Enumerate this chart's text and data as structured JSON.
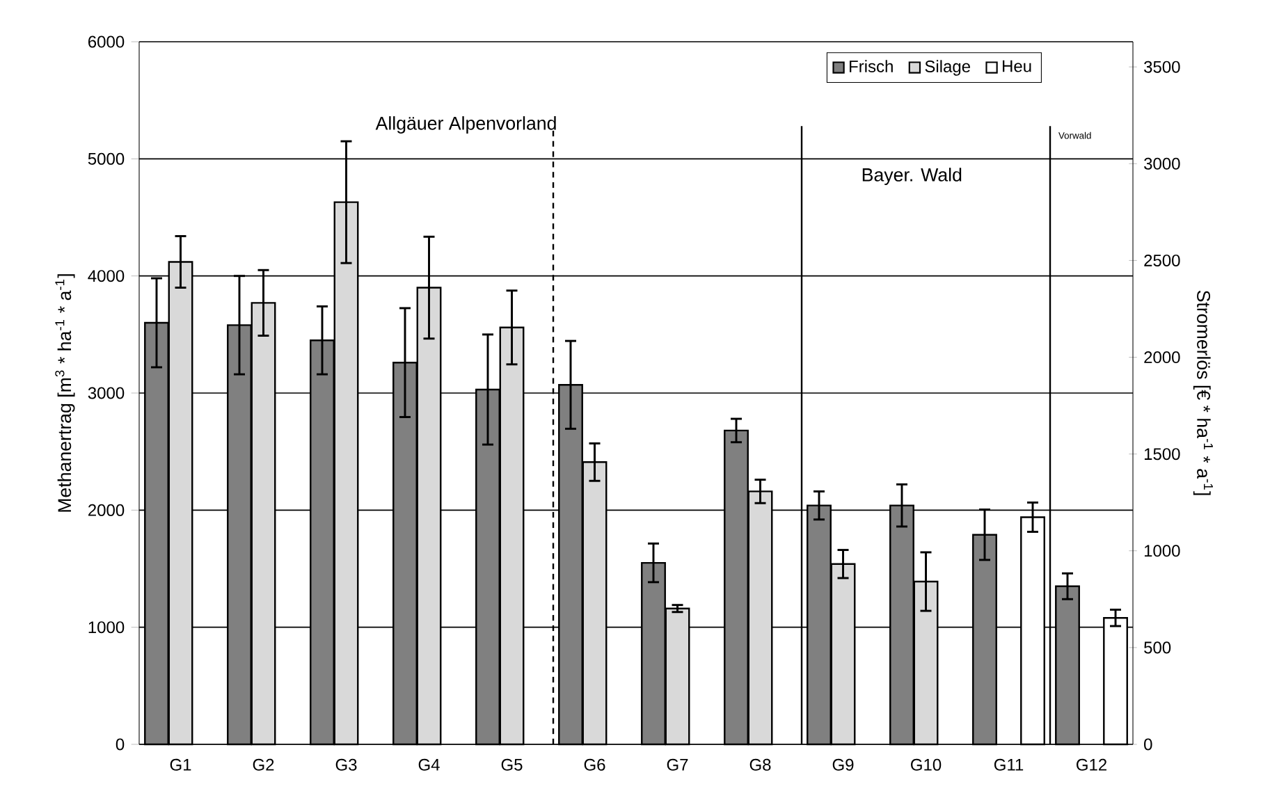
{
  "chart_data": {
    "type": "bar",
    "categories": [
      "G1",
      "G2",
      "G3",
      "G4",
      "G5",
      "G6",
      "G7",
      "G8",
      "G9",
      "G10",
      "G11",
      "G12"
    ],
    "series": [
      {
        "name": "Frisch",
        "color": "#808080",
        "values": [
          3600,
          3580,
          3450,
          3260,
          3030,
          3070,
          1550,
          2680,
          2040,
          2040,
          1790,
          1350
        ],
        "errors": [
          380,
          420,
          290,
          465,
          470,
          375,
          165,
          100,
          120,
          180,
          215,
          110
        ]
      },
      {
        "name": "Silage",
        "color": "#d9d9d9",
        "values": [
          4120,
          3770,
          4630,
          3900,
          3560,
          2410,
          1160,
          2160,
          1540,
          1390,
          null,
          null
        ],
        "errors": [
          220,
          280,
          520,
          435,
          315,
          160,
          30,
          100,
          120,
          250,
          null,
          null
        ]
      },
      {
        "name": "Heu",
        "color": "#ffffff",
        "values": [
          null,
          null,
          null,
          null,
          null,
          null,
          null,
          null,
          null,
          null,
          1940,
          1080
        ],
        "errors": [
          null,
          null,
          null,
          null,
          null,
          null,
          null,
          null,
          null,
          null,
          125,
          70
        ]
      }
    ],
    "ylabel": "Methanertrag [m$^{3}$ * ha$^{-1}$ * a$^{-1}$]",
    "y2label": "Stromerlös [€ * ha$^{-1}$ * a$^{-1}$]",
    "ylim": [
      0,
      6000
    ],
    "yticks": [
      0,
      1000,
      2000,
      3000,
      4000,
      5000,
      6000
    ],
    "y2lim": [
      0,
      3630
    ],
    "y2ticks": [
      0,
      500,
      1000,
      1500,
      2000,
      2500,
      3000,
      3500
    ],
    "grid": "y",
    "legend": "top right",
    "annotations": [
      "Allgäuer Alpenvorland",
      "Bayer. Wald",
      "Vorwald"
    ]
  }
}
